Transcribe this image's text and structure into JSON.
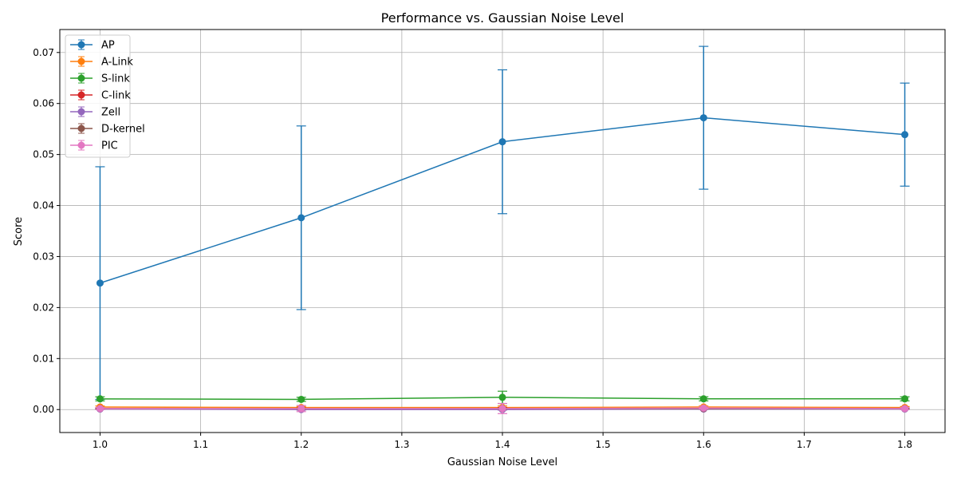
{
  "chart_data": {
    "type": "line",
    "title": "Performance vs. Gaussian Noise Level",
    "xlabel": "Gaussian Noise Level",
    "ylabel": "Score",
    "x": [
      1.0,
      1.2,
      1.4,
      1.6,
      1.8
    ],
    "xlim": [
      0.96,
      1.84
    ],
    "ylim": [
      -0.0045,
      0.0745
    ],
    "xticks": [
      1.0,
      1.1,
      1.2,
      1.3,
      1.4,
      1.5,
      1.6,
      1.7,
      1.8
    ],
    "xtick_labels": [
      "1.0",
      "1.1",
      "1.2",
      "1.3",
      "1.4",
      "1.5",
      "1.6",
      "1.7",
      "1.8"
    ],
    "yticks": [
      0.0,
      0.01,
      0.02,
      0.03,
      0.04,
      0.05,
      0.06,
      0.07
    ],
    "ytick_labels": [
      "0.00",
      "0.01",
      "0.02",
      "0.03",
      "0.04",
      "0.05",
      "0.06",
      "0.07"
    ],
    "grid": true,
    "legend_position": "upper-left",
    "series": [
      {
        "name": "AP",
        "color": "#1f77b4",
        "values": [
          0.0248,
          0.0376,
          0.0525,
          0.0572,
          0.0539
        ],
        "errors": [
          0.0228,
          0.018,
          0.0141,
          0.014,
          0.0101
        ]
      },
      {
        "name": "A-Link",
        "color": "#ff7f0e",
        "values": [
          0.0005,
          0.0004,
          0.0004,
          0.0005,
          0.0004
        ],
        "errors": [
          0.0002,
          0.0002,
          0.0003,
          0.0002,
          0.0002
        ]
      },
      {
        "name": "S-link",
        "color": "#2ca02c",
        "values": [
          0.0021,
          0.002,
          0.0024,
          0.0021,
          0.0021
        ],
        "errors": [
          0.0004,
          0.0004,
          0.0012,
          0.0004,
          0.0004
        ]
      },
      {
        "name": "C-link",
        "color": "#d62728",
        "values": [
          0.0002,
          0.0001,
          0.0002,
          0.0002,
          0.0002
        ],
        "errors": [
          0.0001,
          0.0002,
          0.0002,
          0.0001,
          0.0001
        ]
      },
      {
        "name": "Zell",
        "color": "#9467bd",
        "values": [
          0.0001,
          0.0,
          0.0,
          0.0001,
          0.0001
        ],
        "errors": [
          0.0001,
          0.0001,
          0.0001,
          0.0001,
          0.0001
        ]
      },
      {
        "name": "D-kernel",
        "color": "#8c564b",
        "values": [
          0.0002,
          0.0002,
          0.0002,
          0.0002,
          0.0002
        ],
        "errors": [
          0.0001,
          0.0001,
          0.0001,
          0.0001,
          0.0001
        ]
      },
      {
        "name": "PIC",
        "color": "#e377c2",
        "values": [
          0.0002,
          0.0002,
          0.0002,
          0.0003,
          0.0002
        ],
        "errors": [
          0.0002,
          0.0006,
          0.001,
          0.0002,
          0.0002
        ]
      }
    ]
  }
}
